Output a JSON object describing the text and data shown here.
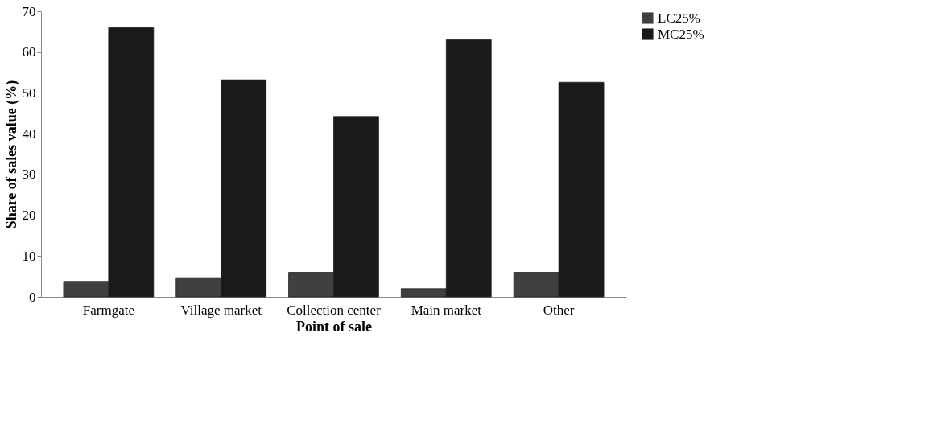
{
  "chart_data": {
    "type": "bar",
    "xlabel": "Point of sale",
    "ylabel": "Share of sales value (%)",
    "categories": [
      "Farmgate",
      "Village market",
      "Collection center",
      "Main market",
      "Other"
    ],
    "series": [
      {
        "name": "LC25%",
        "color": "#404040",
        "values": [
          3.8,
          4.7,
          6.0,
          2.0,
          6.0
        ]
      },
      {
        "name": "MC25%",
        "color": "#1a1a1a",
        "values": [
          66.0,
          53.2,
          44.2,
          63.0,
          52.6
        ]
      }
    ],
    "ylim": [
      0,
      70
    ],
    "yticks": [
      0,
      10,
      20,
      30,
      40,
      50,
      60,
      70
    ],
    "grid": false,
    "legend": "right"
  }
}
